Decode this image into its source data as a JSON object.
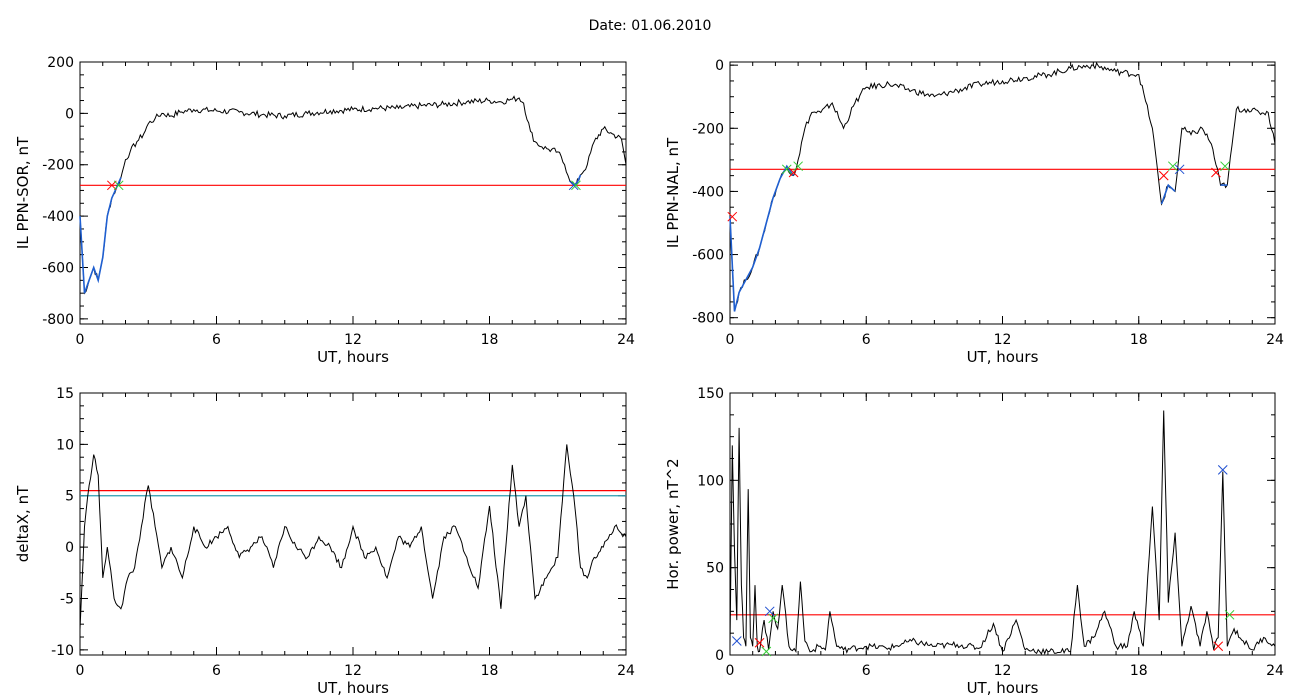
{
  "title": "Date:  01.06.2010",
  "colors": {
    "trace": "#000000",
    "highlight": "#1f5fd0",
    "threshold": "#ff0000",
    "threshold2": "#2a9bb0",
    "marker_red": "#ff0000",
    "marker_green": "#33cc33",
    "marker_blue": "#1f4fd0"
  },
  "chart_data": [
    {
      "type": "line",
      "xlabel": "UT, hours",
      "ylabel": "IL PPN-SOR, nT",
      "xlim": [
        0,
        24
      ],
      "ylim": [
        -820,
        200
      ],
      "xticks": [
        0,
        6,
        12,
        18,
        24
      ],
      "yticks": [
        -800,
        -600,
        -400,
        -200,
        0,
        200
      ],
      "series": [
        {
          "x": [
            0,
            0.2,
            0.4,
            0.6,
            0.8,
            1.0,
            1.2,
            1.4,
            1.6,
            1.8,
            2.0,
            2.2,
            2.5,
            2.8,
            3.0,
            3.3,
            3.6,
            4.0,
            4.4,
            5.0,
            6,
            7,
            8,
            9,
            10,
            11,
            12,
            13,
            14,
            15,
            16,
            17,
            18,
            18.5,
            19,
            19.3,
            19.5,
            19.8,
            20.0,
            20.3,
            20.6,
            21.0,
            21.3,
            21.6,
            21.8,
            22.0,
            22.3,
            22.6,
            23.0,
            23.4,
            23.8,
            24
          ],
          "y": [
            -400,
            -700,
            -650,
            -600,
            -650,
            -560,
            -400,
            -330,
            -290,
            -250,
            -180,
            -150,
            -110,
            -80,
            -40,
            -20,
            0,
            -10,
            5,
            15,
            10,
            5,
            -5,
            -10,
            0,
            10,
            15,
            20,
            20,
            30,
            35,
            45,
            50,
            45,
            55,
            60,
            40,
            -70,
            -110,
            -130,
            -140,
            -150,
            -200,
            -270,
            -280,
            -240,
            -200,
            -110,
            -60,
            -80,
            -100,
            -200
          ]
        }
      ],
      "highlight_segments": [
        {
          "x": [
            0,
            0.2,
            0.4,
            0.6,
            0.8,
            1.0,
            1.2,
            1.4,
            1.6,
            1.8
          ],
          "y": [
            -400,
            -700,
            -650,
            -600,
            -650,
            -560,
            -400,
            -330,
            -290,
            -250
          ]
        },
        {
          "x": [
            21.6,
            21.8,
            22.0
          ],
          "y": [
            -270,
            -280,
            -240
          ]
        }
      ],
      "threshold": -280,
      "markers": [
        {
          "x": 1.4,
          "y": -280,
          "color": "red"
        },
        {
          "x": 1.7,
          "y": -280,
          "color": "green"
        },
        {
          "x": 21.7,
          "y": -280,
          "color": "blue"
        },
        {
          "x": 21.8,
          "y": -280,
          "color": "green"
        }
      ]
    },
    {
      "type": "line",
      "xlabel": "UT, hours",
      "ylabel": "IL PPN-NAL, nT",
      "xlim": [
        0,
        24
      ],
      "ylim": [
        -820,
        10
      ],
      "xticks": [
        0,
        6,
        12,
        18,
        24
      ],
      "yticks": [
        -800,
        -600,
        -400,
        -200,
        0
      ],
      "series": [
        {
          "x": [
            0,
            0.2,
            0.4,
            0.7,
            1.0,
            1.3,
            1.6,
            1.9,
            2.2,
            2.5,
            2.8,
            3.0,
            3.3,
            3.6,
            4.0,
            4.5,
            5.0,
            5.5,
            6,
            7,
            8,
            9,
            10,
            11,
            12,
            13,
            14,
            15,
            16,
            17,
            18,
            18.6,
            19.0,
            19.3,
            19.6,
            19.9,
            20.3,
            20.8,
            21.2,
            21.6,
            21.9,
            22.3,
            22.8,
            23.3,
            23.7,
            24
          ],
          "y": [
            -480,
            -780,
            -720,
            -680,
            -640,
            -580,
            -500,
            -420,
            -360,
            -320,
            -350,
            -300,
            -200,
            -150,
            -150,
            -120,
            -200,
            -120,
            -70,
            -60,
            -80,
            -100,
            -80,
            -60,
            -50,
            -40,
            -30,
            -10,
            0,
            -20,
            -30,
            -200,
            -440,
            -380,
            -400,
            -200,
            -220,
            -200,
            -250,
            -380,
            -380,
            -140,
            -140,
            -150,
            -150,
            -250
          ]
        }
      ],
      "highlight_segments": [
        {
          "x": [
            0,
            0.2,
            0.4,
            0.7,
            1.0,
            1.3,
            1.6,
            1.9,
            2.2,
            2.5,
            2.8
          ],
          "y": [
            -480,
            -780,
            -720,
            -680,
            -640,
            -580,
            -500,
            -420,
            -360,
            -320,
            -350
          ]
        },
        {
          "x": [
            19.0,
            19.3,
            19.6
          ],
          "y": [
            -440,
            -380,
            -400
          ]
        },
        {
          "x": [
            21.6,
            21.9
          ],
          "y": [
            -380,
            -380
          ]
        }
      ],
      "threshold": -330,
      "markers": [
        {
          "x": 0.1,
          "y": -480,
          "color": "red"
        },
        {
          "x": 2.5,
          "y": -330,
          "color": "green"
        },
        {
          "x": 2.8,
          "y": -340,
          "color": "red"
        },
        {
          "x": 3.0,
          "y": -320,
          "color": "green"
        },
        {
          "x": 19.1,
          "y": -350,
          "color": "red"
        },
        {
          "x": 19.5,
          "y": -320,
          "color": "green"
        },
        {
          "x": 19.8,
          "y": -330,
          "color": "blue"
        },
        {
          "x": 21.4,
          "y": -340,
          "color": "red"
        },
        {
          "x": 21.8,
          "y": -320,
          "color": "green"
        }
      ]
    },
    {
      "type": "line",
      "xlabel": "UT, hours",
      "ylabel": "deltaX, nT",
      "xlim": [
        0,
        24
      ],
      "ylim": [
        -10.5,
        15
      ],
      "xticks": [
        0,
        6,
        12,
        18,
        24
      ],
      "yticks": [
        -10,
        -5,
        0,
        5,
        10,
        15
      ],
      "series": [
        {
          "x": [
            0,
            0.2,
            0.4,
            0.6,
            0.8,
            1.0,
            1.2,
            1.5,
            1.8,
            2.1,
            2.4,
            2.7,
            3.0,
            3.3,
            3.6,
            4.0,
            4.5,
            5.0,
            5.5,
            6,
            6.5,
            7,
            7.5,
            8,
            8.5,
            9,
            9.5,
            10,
            10.5,
            11,
            11.5,
            12,
            12.5,
            13,
            13.5,
            14,
            14.5,
            15,
            15.5,
            16,
            16.5,
            17,
            17.5,
            18,
            18.5,
            19,
            19.3,
            19.6,
            20.0,
            20.5,
            21.0,
            21.4,
            21.7,
            22.0,
            22.3,
            22.6,
            23.0,
            23.5,
            24
          ],
          "y": [
            -8,
            2,
            6,
            9,
            7,
            -3,
            0,
            -5,
            -6,
            -3,
            -2,
            2,
            6,
            2,
            -2,
            0,
            -3,
            2,
            0,
            1,
            2,
            -1,
            0,
            1,
            -2,
            2,
            0,
            -1,
            1,
            0,
            -2,
            2,
            -1,
            0,
            -3,
            1,
            0,
            2,
            -5,
            1,
            2,
            -1,
            -4,
            4,
            -6,
            8,
            2,
            5,
            -5,
            -3,
            -1,
            10,
            5,
            -2,
            -3,
            -1,
            0,
            2,
            1
          ]
        }
      ],
      "thresholds": [
        5.5,
        5.0
      ]
    },
    {
      "type": "line",
      "xlabel": "UT, hours",
      "ylabel": "Hor. power, nT^2",
      "xlim": [
        0,
        24
      ],
      "ylim": [
        0,
        150
      ],
      "xticks": [
        0,
        6,
        12,
        18,
        24
      ],
      "yticks": [
        0,
        50,
        100,
        150
      ],
      "series": [
        {
          "x": [
            0,
            0.1,
            0.2,
            0.3,
            0.4,
            0.5,
            0.6,
            0.7,
            0.8,
            0.9,
            1.0,
            1.1,
            1.2,
            1.3,
            1.5,
            1.7,
            1.9,
            2.1,
            2.3,
            2.6,
            2.9,
            3.1,
            3.3,
            3.6,
            3.9,
            4.2,
            4.4,
            4.7,
            5,
            6,
            7,
            8,
            9,
            10,
            11,
            11.6,
            12,
            12.6,
            13,
            14,
            15,
            15.3,
            15.6,
            16,
            16.5,
            17,
            17.5,
            17.8,
            18.2,
            18.6,
            18.9,
            19.1,
            19.3,
            19.6,
            19.9,
            20.3,
            20.7,
            21.0,
            21.3,
            21.5,
            21.7,
            21.9,
            22.2,
            22.6,
            23.0,
            23.5,
            24
          ],
          "y": [
            5,
            120,
            60,
            20,
            130,
            40,
            10,
            5,
            95,
            10,
            5,
            40,
            5,
            2,
            20,
            3,
            25,
            15,
            40,
            5,
            2,
            42,
            8,
            2,
            5,
            3,
            25,
            5,
            3,
            5,
            4,
            8,
            5,
            6,
            4,
            18,
            2,
            20,
            3,
            2,
            2,
            40,
            5,
            10,
            25,
            5,
            5,
            25,
            5,
            85,
            20,
            140,
            30,
            70,
            5,
            28,
            5,
            25,
            3,
            10,
            105,
            5,
            15,
            8,
            3,
            10,
            5
          ]
        }
      ],
      "threshold": 23,
      "markers": [
        {
          "x": 0.3,
          "y": 8,
          "color": "blue"
        },
        {
          "x": 1.3,
          "y": 7,
          "color": "red"
        },
        {
          "x": 1.6,
          "y": 2,
          "color": "green"
        },
        {
          "x": 1.75,
          "y": 25,
          "color": "blue"
        },
        {
          "x": 1.9,
          "y": 21,
          "color": "green"
        },
        {
          "x": 21.5,
          "y": 5,
          "color": "red"
        },
        {
          "x": 21.7,
          "y": 106,
          "color": "blue"
        },
        {
          "x": 22.0,
          "y": 23,
          "color": "green"
        }
      ]
    }
  ]
}
